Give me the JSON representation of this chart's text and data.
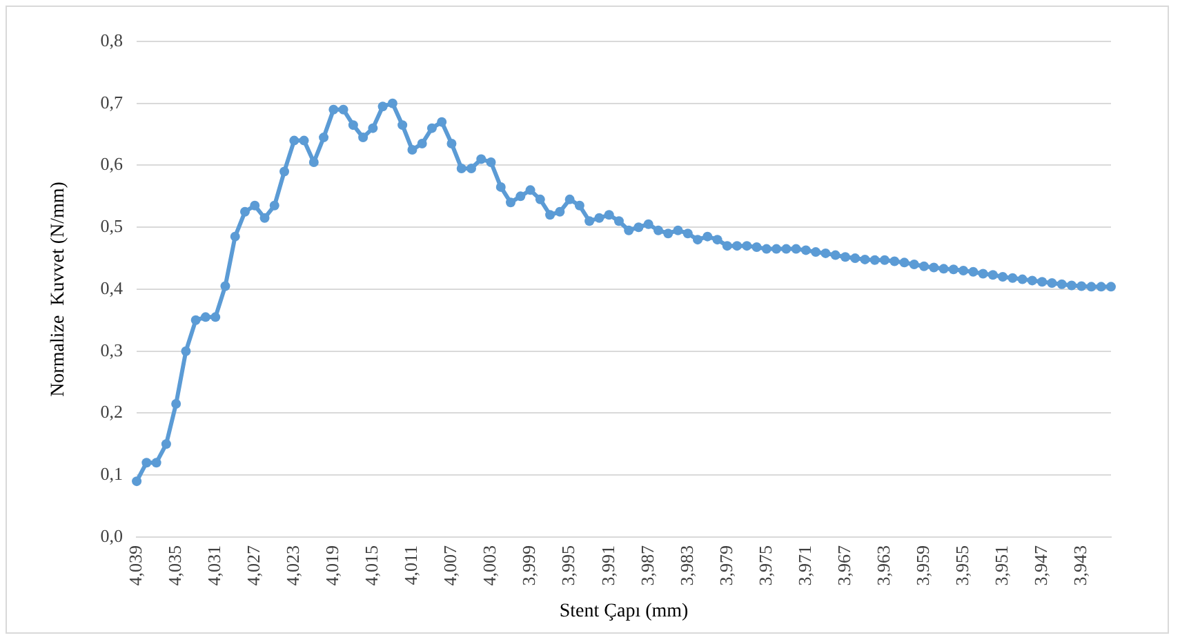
{
  "chart_data": {
    "type": "line",
    "xlabel": "Stent Çapı (mm)",
    "ylabel": "Normalize  Kuvvet (N/mm)",
    "categories": [
      "4,039",
      null,
      null,
      null,
      "4,035",
      null,
      null,
      null,
      "4,031",
      null,
      null,
      null,
      "4,027",
      null,
      null,
      null,
      "4,023",
      null,
      null,
      null,
      "4,019",
      null,
      null,
      null,
      "4,015",
      null,
      null,
      null,
      "4,011",
      null,
      null,
      null,
      "4,007",
      null,
      null,
      null,
      "4,003",
      null,
      null,
      null,
      "3,999",
      null,
      null,
      null,
      "3,995",
      null,
      null,
      null,
      "3,991",
      null,
      null,
      null,
      "3,987",
      null,
      null,
      null,
      "3,983",
      null,
      null,
      null,
      "3,979",
      null,
      null,
      null,
      "3,975",
      null,
      null,
      null,
      "3,971",
      null,
      null,
      null,
      "3,967",
      null,
      null,
      null,
      "3,963",
      null,
      null,
      null,
      "3,959",
      null,
      null,
      null,
      "3,955",
      null,
      null,
      null,
      "3,951",
      null,
      null,
      null,
      "3,947",
      null,
      null,
      null,
      "3,943",
      null,
      null,
      null
    ],
    "series": [
      {
        "color": "#5b9bd5",
        "values": [
          0.09,
          0.12,
          0.12,
          0.15,
          0.215,
          0.3,
          0.35,
          0.355,
          0.355,
          0.405,
          0.485,
          0.525,
          0.535,
          0.515,
          0.535,
          0.59,
          0.64,
          0.64,
          0.605,
          0.645,
          0.69,
          0.69,
          0.665,
          0.645,
          0.66,
          0.695,
          0.7,
          0.665,
          0.625,
          0.635,
          0.66,
          0.67,
          0.635,
          0.595,
          0.595,
          0.61,
          0.605,
          0.565,
          0.54,
          0.55,
          0.56,
          0.545,
          0.52,
          0.525,
          0.545,
          0.535,
          0.51,
          0.515,
          0.52,
          0.51,
          0.495,
          0.5,
          0.505,
          0.495,
          0.49,
          0.495,
          0.49,
          0.48,
          0.485,
          0.48,
          0.47,
          0.47,
          0.47,
          0.468,
          0.465,
          0.465,
          0.465,
          0.465,
          0.463,
          0.46,
          0.458,
          0.455,
          0.452,
          0.45,
          0.448,
          0.447,
          0.447,
          0.445,
          0.443,
          0.44,
          0.437,
          0.435,
          0.433,
          0.432,
          0.43,
          0.428,
          0.425,
          0.423,
          0.42,
          0.418,
          0.416,
          0.414,
          0.412,
          0.41,
          0.408,
          0.406,
          0.405,
          0.404,
          0.404,
          0.404
        ]
      }
    ],
    "ylim": [
      0,
      0.8
    ],
    "yticks": [
      {
        "value": 0,
        "label": "0,0"
      },
      {
        "value": 0.1,
        "label": "0,1"
      },
      {
        "value": 0.2,
        "label": "0,2"
      },
      {
        "value": 0.3,
        "label": "0,3"
      },
      {
        "value": 0.4,
        "label": "0,4"
      },
      {
        "value": 0.5,
        "label": "0,5"
      },
      {
        "value": 0.6,
        "label": "0,6"
      },
      {
        "value": 0.7,
        "label": "0,7"
      },
      {
        "value": 0.8,
        "label": "0,8"
      }
    ],
    "grid": "y",
    "legend": false,
    "marker": "circle",
    "line_style": "solid"
  }
}
